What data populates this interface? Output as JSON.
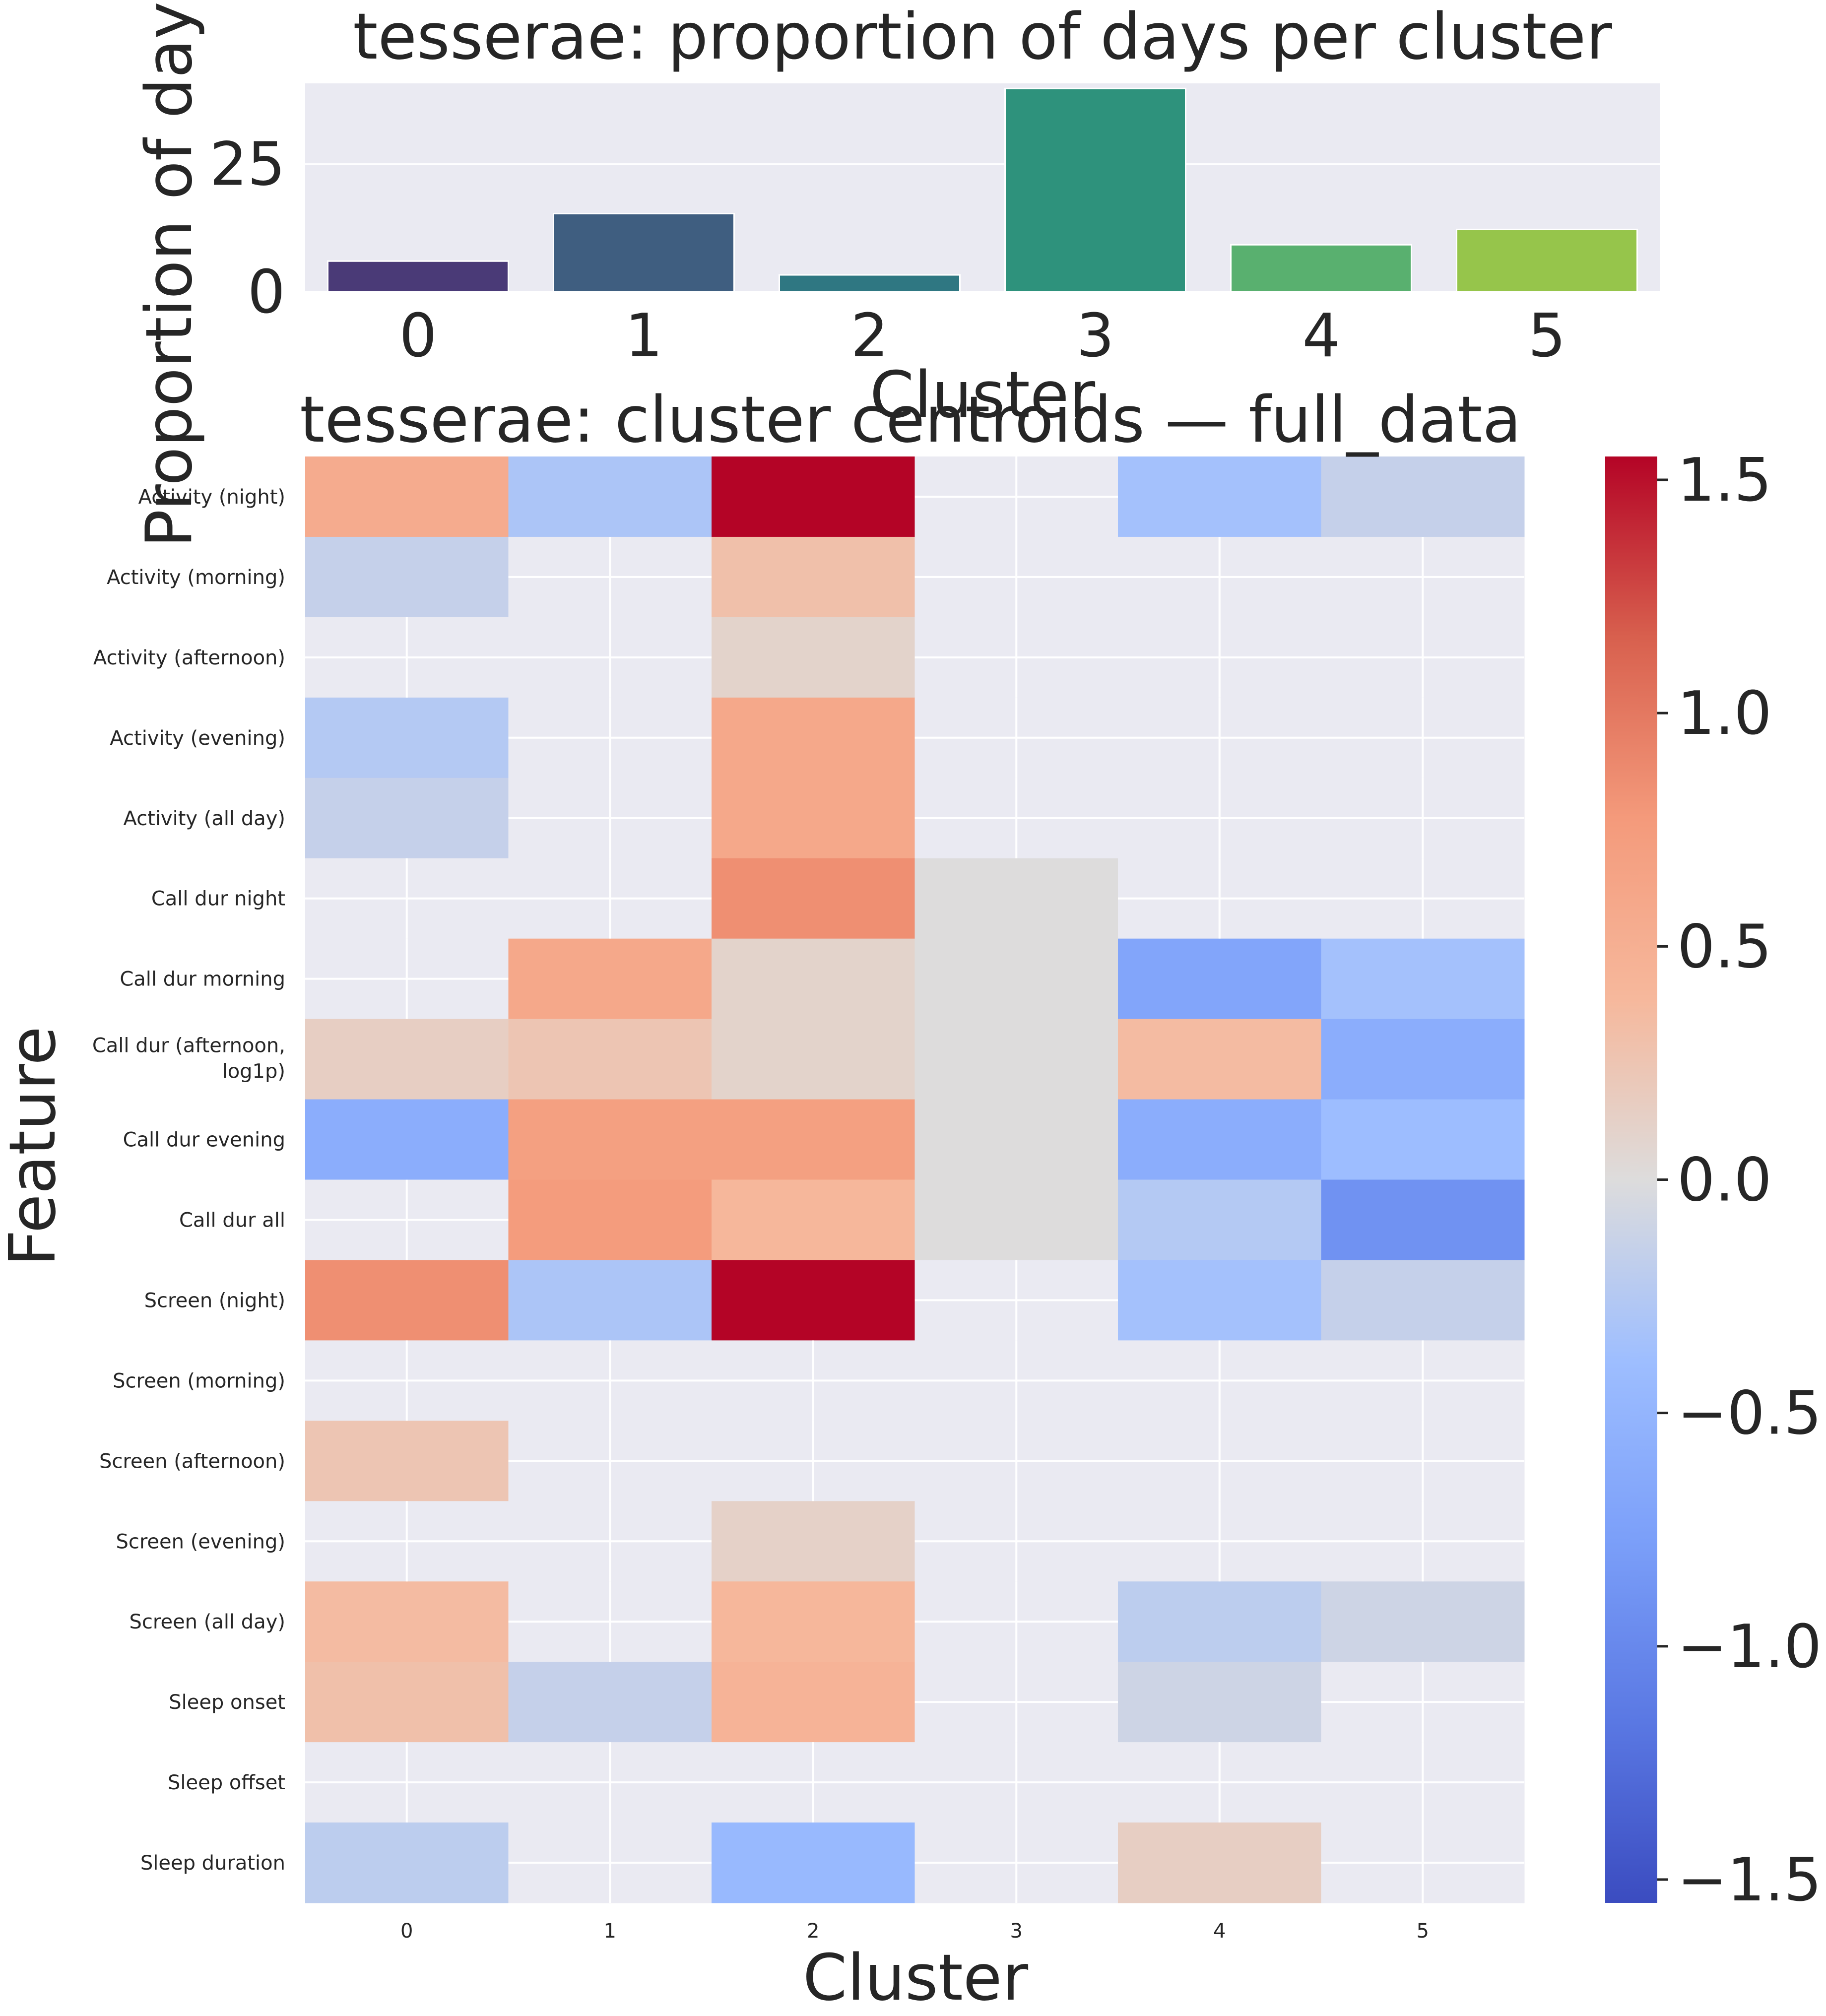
{
  "chart_data": [
    {
      "type": "bar",
      "title": "tesserae: proportion of days per cluster",
      "xlabel": "Cluster",
      "ylabel": "Proportion of days",
      "categories": [
        "0",
        "1",
        "2",
        "3",
        "4",
        "5"
      ],
      "values": [
        6.0,
        15.3,
        3.3,
        39.8,
        9.2,
        12.2
      ],
      "ylim": [
        0,
        40.8
      ],
      "yticks": [
        "0",
        "25"
      ],
      "colors": [
        "#4a3a77",
        "#3f5e80",
        "#2f7782",
        "#2e927c",
        "#59b06f",
        "#96c54b"
      ],
      "grid": true
    },
    {
      "type": "heatmap",
      "title": "tesserae: cluster centroids — full_data",
      "xlabel": "Cluster",
      "ylabel": "Feature",
      "columns": [
        "0",
        "1",
        "2",
        "3",
        "4",
        "5"
      ],
      "rows": [
        "Activity (night)",
        "Activity (morning)",
        "Activity (afternoon)",
        "Activity (evening)",
        "Activity (all day)",
        "Call dur night",
        "Call dur morning",
        "Call dur (afternoon, log1p)",
        "Call dur evening",
        "Call dur all",
        "Screen (night)",
        "Screen (morning)",
        "Screen (afternoon)",
        "Screen (evening)",
        "Screen (all day)",
        "Sleep onset",
        "Sleep offset",
        "Sleep duration"
      ],
      "values": [
        [
          0.55,
          -0.3,
          1.6,
          null,
          -0.35,
          -0.15
        ],
        [
          -0.15,
          null,
          0.3,
          null,
          null,
          null
        ],
        [
          null,
          null,
          0.1,
          null,
          null,
          null
        ],
        [
          -0.25,
          null,
          0.6,
          null,
          null,
          null
        ],
        [
          -0.15,
          null,
          0.6,
          null,
          null,
          null
        ],
        [
          null,
          null,
          0.85,
          0.0,
          null,
          null
        ],
        [
          null,
          0.6,
          0.1,
          0.0,
          -0.7,
          -0.35
        ],
        [
          0.15,
          0.25,
          0.1,
          0.0,
          0.35,
          -0.6
        ],
        [
          -0.6,
          0.7,
          0.7,
          0.0,
          -0.6,
          -0.4
        ],
        [
          null,
          0.75,
          0.4,
          0.0,
          -0.25,
          -0.9
        ],
        [
          0.85,
          -0.3,
          1.6,
          null,
          -0.35,
          -0.15
        ],
        [
          null,
          null,
          null,
          null,
          null,
          null
        ],
        [
          0.25,
          null,
          null,
          null,
          null,
          null
        ],
        [
          null,
          null,
          0.12,
          null,
          null,
          null
        ],
        [
          0.35,
          null,
          0.4,
          null,
          -0.2,
          -0.1
        ],
        [
          0.3,
          -0.15,
          0.45,
          null,
          -0.1,
          null
        ],
        [
          null,
          null,
          null,
          null,
          null,
          null
        ],
        [
          -0.2,
          null,
          -0.45,
          null,
          0.15,
          null
        ]
      ],
      "colorbar": {
        "colormap": "coolwarm",
        "vmin": -1.55,
        "vmax": 1.55,
        "ticks": [
          "−1.5",
          "−1.0",
          "−0.5",
          "0.0",
          "0.5",
          "1.0",
          "1.5"
        ],
        "tick_values": [
          -1.5,
          -1.0,
          -0.5,
          0.0,
          0.5,
          1.0,
          1.5
        ]
      },
      "missing_color": "#eaeaf2"
    }
  ]
}
